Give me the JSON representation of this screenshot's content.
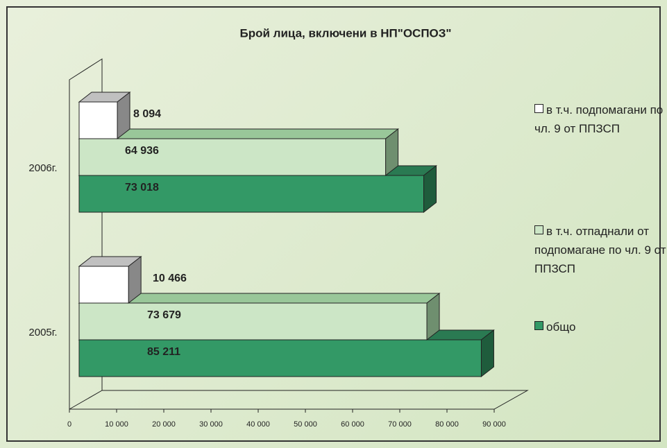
{
  "chart_data": {
    "type": "bar3d_horizontal",
    "title": "Брой лица, включени в НП\"ОСПОЗ\"",
    "categories": [
      "2006г.",
      "2005г."
    ],
    "series": [
      {
        "name": "в т.ч. подпомагани по чл. 9 от ППЗСП",
        "color": "#ffffff",
        "values": [
          8094,
          10466
        ],
        "value_labels": [
          "8 094",
          "10 466"
        ]
      },
      {
        "name": "в т.ч. отпаднали от подпомагане по чл. 9 от ППЗСП",
        "color": "#cce6c6",
        "values": [
          64936,
          73679
        ],
        "value_labels": [
          "64 936",
          "73 679"
        ]
      },
      {
        "name": "общо",
        "color": "#339966",
        "values": [
          73018,
          85211
        ],
        "value_labels": [
          "73 018",
          "85 211"
        ]
      }
    ],
    "xlim": [
      0,
      90000
    ],
    "xticks": [
      0,
      {
        "value": 10000,
        "label": "10 000"
      },
      {
        "value": 20000,
        "label": "20 000"
      },
      {
        "value": 30000,
        "label": "30 000"
      },
      {
        "value": 40000,
        "label": "40 000"
      },
      {
        "value": 50000,
        "label": "50 000"
      },
      {
        "value": 60000,
        "label": "60 000"
      },
      {
        "value": 70000,
        "label": "70 000"
      },
      {
        "value": 80000,
        "label": "80 000"
      },
      {
        "value": 90000,
        "label": "90 000"
      }
    ],
    "legend": "right"
  }
}
